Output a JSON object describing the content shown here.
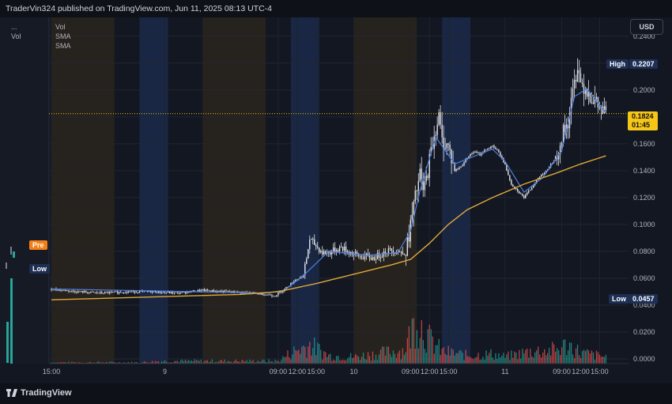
{
  "header": {
    "title": "TraderVin324 published on TradingView.com, Jun 11, 2025 08:13 UTC-4"
  },
  "footer": {
    "brand": "TradingView"
  },
  "side_panel": {
    "menu_dots": "...",
    "vol_label": "Vol",
    "pre_label": "Pre",
    "low_label": "Low"
  },
  "legend": {
    "items": [
      "Vol",
      "SMA",
      "SMA"
    ]
  },
  "price_axis": {
    "currency_button": "USD",
    "ticks": [
      "0.2400",
      "0.2200",
      "0.2000",
      "0.1800",
      "0.1600",
      "0.1400",
      "0.1200",
      "0.1000",
      "0.0800",
      "0.0600",
      "0.0400",
      "0.0200",
      "0.0000"
    ],
    "high_label": "High",
    "high_value": "0.2207",
    "last_value": "0.1824",
    "countdown": "01:45",
    "low_label": "Low",
    "low_value": "0.0457"
  },
  "time_axis": {
    "ticks": [
      {
        "label": "15:00",
        "h": 0
      },
      {
        "label": "9",
        "h": 18
      },
      {
        "label": "09:00",
        "h": 36
      },
      {
        "label": "12:00",
        "h": 39
      },
      {
        "label": "15:00",
        "h": 42
      },
      {
        "label": "10",
        "h": 48
      },
      {
        "label": "09:00",
        "h": 57
      },
      {
        "label": "12:00",
        "h": 60
      },
      {
        "label": "15:00",
        "h": 63
      },
      {
        "label": "11",
        "h": 72
      },
      {
        "label": "09:00",
        "h": 81
      },
      {
        "label": "12:00",
        "h": 84
      },
      {
        "label": "15:00",
        "h": 87
      }
    ]
  },
  "colors": {
    "background": "#131722",
    "candle": "#dfe2ea",
    "sma_fast": "#4f7fe0",
    "sma_slow": "#e0a93a",
    "vol_up": "#26a69a",
    "vol_down": "#ef5350",
    "last_price": "#f5c518",
    "premarket_shade": "#1b2a4a",
    "afterhours_shade": "#2a241c"
  },
  "chart_data": {
    "type": "candlestick",
    "x_unit": "hours since Jun 8 15:00 (extended-hours session)",
    "y_range": [
      0.0,
      0.24
    ],
    "sessions": [
      {
        "kind": "premarket",
        "start": 14,
        "end": 18.5
      },
      {
        "kind": "afterhours",
        "start": 0,
        "end": 10
      },
      {
        "kind": "premarket",
        "start": 38,
        "end": 42.5
      },
      {
        "kind": "afterhours",
        "start": 24,
        "end": 34
      },
      {
        "kind": "premarket",
        "start": 62,
        "end": 66.5
      },
      {
        "kind": "afterhours",
        "start": 48,
        "end": 58
      }
    ],
    "price_path": [
      [
        0,
        0.052
      ],
      [
        4,
        0.05
      ],
      [
        8,
        0.049
      ],
      [
        12,
        0.05
      ],
      [
        16,
        0.05
      ],
      [
        20,
        0.049
      ],
      [
        24,
        0.051
      ],
      [
        28,
        0.05
      ],
      [
        32,
        0.049
      ],
      [
        34,
        0.048
      ],
      [
        35.5,
        0.047
      ],
      [
        37,
        0.052
      ],
      [
        38.5,
        0.058
      ],
      [
        40,
        0.062
      ],
      [
        40.5,
        0.075
      ],
      [
        41,
        0.089
      ],
      [
        42,
        0.084
      ],
      [
        43,
        0.079
      ],
      [
        44,
        0.079
      ],
      [
        45,
        0.081
      ],
      [
        46,
        0.083
      ],
      [
        47,
        0.08
      ],
      [
        48,
        0.078
      ],
      [
        49,
        0.076
      ],
      [
        50,
        0.076
      ],
      [
        51,
        0.075
      ],
      [
        52,
        0.077
      ],
      [
        53,
        0.08
      ],
      [
        54,
        0.081
      ],
      [
        55,
        0.08
      ],
      [
        56,
        0.078
      ],
      [
        56.5,
        0.085
      ],
      [
        57,
        0.1
      ],
      [
        58,
        0.126
      ],
      [
        58.5,
        0.137
      ],
      [
        59,
        0.125
      ],
      [
        59.5,
        0.133
      ],
      [
        60,
        0.148
      ],
      [
        61,
        0.172
      ],
      [
        61.5,
        0.18
      ],
      [
        62,
        0.162
      ],
      [
        63,
        0.158
      ],
      [
        64,
        0.14
      ],
      [
        65,
        0.143
      ],
      [
        66,
        0.15
      ],
      [
        67,
        0.154
      ],
      [
        68,
        0.152
      ],
      [
        69,
        0.156
      ],
      [
        70,
        0.158
      ],
      [
        71,
        0.154
      ],
      [
        72,
        0.144
      ],
      [
        73,
        0.13
      ],
      [
        74,
        0.125
      ],
      [
        75,
        0.12
      ],
      [
        76,
        0.126
      ],
      [
        77,
        0.133
      ],
      [
        78,
        0.138
      ],
      [
        79,
        0.142
      ],
      [
        80,
        0.15
      ],
      [
        81,
        0.166
      ],
      [
        82,
        0.176
      ],
      [
        83,
        0.205
      ],
      [
        83.5,
        0.219
      ],
      [
        84,
        0.206
      ],
      [
        85,
        0.2
      ],
      [
        86,
        0.193
      ],
      [
        87,
        0.186
      ],
      [
        88,
        0.1824
      ]
    ],
    "sma_fast": [
      [
        0,
        0.052
      ],
      [
        34,
        0.049
      ],
      [
        37,
        0.051
      ],
      [
        40,
        0.062
      ],
      [
        44,
        0.08
      ],
      [
        50,
        0.077
      ],
      [
        55,
        0.079
      ],
      [
        57,
        0.095
      ],
      [
        58.5,
        0.125
      ],
      [
        61,
        0.165
      ],
      [
        64,
        0.145
      ],
      [
        70,
        0.156
      ],
      [
        72,
        0.147
      ],
      [
        75,
        0.124
      ],
      [
        78,
        0.135
      ],
      [
        81,
        0.155
      ],
      [
        83,
        0.195
      ],
      [
        85,
        0.201
      ],
      [
        88,
        0.183
      ]
    ],
    "sma_slow": [
      [
        0,
        0.044
      ],
      [
        30,
        0.048
      ],
      [
        36,
        0.05
      ],
      [
        42,
        0.056
      ],
      [
        48,
        0.063
      ],
      [
        54,
        0.07
      ],
      [
        57,
        0.074
      ],
      [
        60,
        0.086
      ],
      [
        63,
        0.1
      ],
      [
        66,
        0.111
      ],
      [
        70,
        0.12
      ],
      [
        75,
        0.13
      ],
      [
        80,
        0.138
      ],
      [
        84,
        0.145
      ],
      [
        88,
        0.151
      ]
    ],
    "volume_profile": [
      [
        0,
        1
      ],
      [
        14,
        1
      ],
      [
        18,
        2
      ],
      [
        36,
        2
      ],
      [
        38,
        8
      ],
      [
        41,
        14
      ],
      [
        44,
        6
      ],
      [
        48,
        5
      ],
      [
        56,
        10
      ],
      [
        58,
        34
      ],
      [
        60,
        18
      ],
      [
        62,
        9
      ],
      [
        66,
        6
      ],
      [
        70,
        7
      ],
      [
        72,
        5
      ],
      [
        76,
        9
      ],
      [
        80,
        10
      ],
      [
        82,
        14
      ],
      [
        84,
        8
      ],
      [
        88,
        5
      ]
    ]
  }
}
